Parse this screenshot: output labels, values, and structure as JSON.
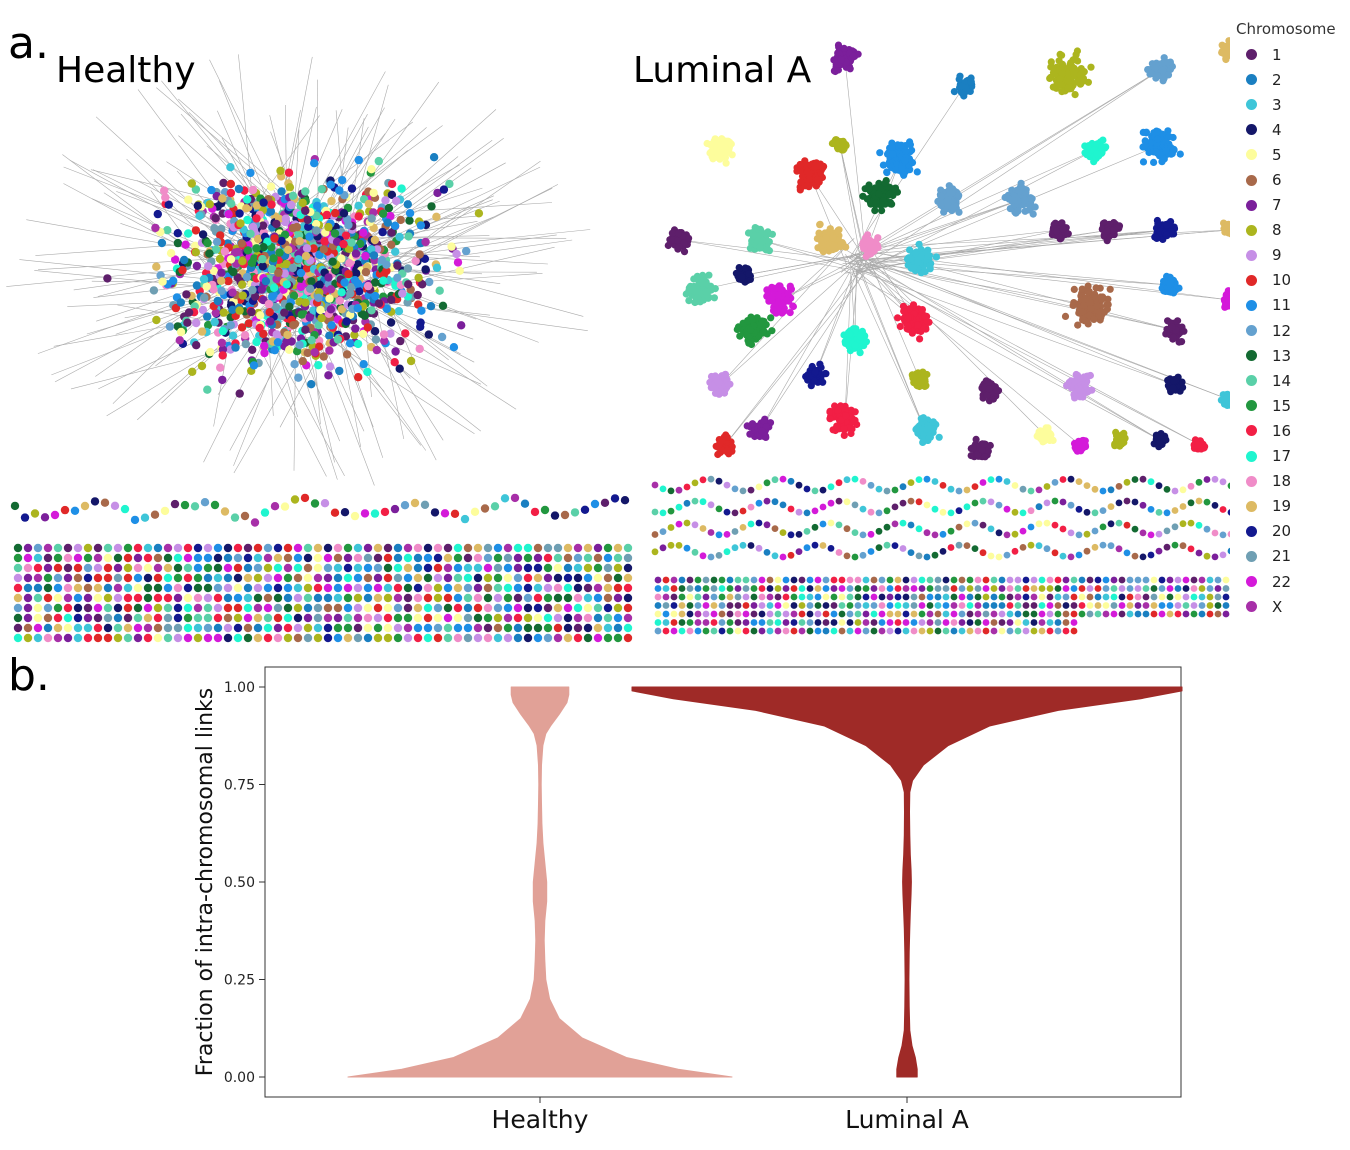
{
  "panel_a": {
    "letter": "a.",
    "left_network_title": "Healthy",
    "right_network_title": "Luminal A",
    "legend": {
      "title": "Chromosome",
      "items": [
        {
          "label": "1",
          "color": "#5e1f6b"
        },
        {
          "label": "2",
          "color": "#1a7fc1"
        },
        {
          "label": "3",
          "color": "#3ec5d8"
        },
        {
          "label": "4",
          "color": "#141769"
        },
        {
          "label": "5",
          "color": "#fdfd9c"
        },
        {
          "label": "6",
          "color": "#a8694a"
        },
        {
          "label": "7",
          "color": "#7b1f9b"
        },
        {
          "label": "8",
          "color": "#acb51e"
        },
        {
          "label": "9",
          "color": "#c68fe6"
        },
        {
          "label": "10",
          "color": "#e02828"
        },
        {
          "label": "11",
          "color": "#1e8fe6"
        },
        {
          "label": "12",
          "color": "#64a1cf"
        },
        {
          "label": "13",
          "color": "#136a32"
        },
        {
          "label": "14",
          "color": "#5ad0a8"
        },
        {
          "label": "15",
          "color": "#22973f"
        },
        {
          "label": "16",
          "color": "#f21f45"
        },
        {
          "label": "17",
          "color": "#1ff5cf"
        },
        {
          "label": "18",
          "color": "#f08cc8"
        },
        {
          "label": "19",
          "color": "#ddba63"
        },
        {
          "label": "20",
          "color": "#13198f"
        },
        {
          "label": "21",
          "color": "#6f9fb3"
        },
        {
          "label": "22",
          "color": "#d41ad9"
        },
        {
          "label": "X",
          "color": "#a72fa8"
        }
      ]
    }
  },
  "panel_b": {
    "letter": "b.",
    "chart_data": {
      "type": "violin",
      "xlabel": "",
      "ylabel": "Fraction of intra-chromosomal links",
      "ylim": [
        0,
        1
      ],
      "yticks": [
        "0.00",
        "0.25",
        "0.50",
        "0.75",
        "1.00"
      ],
      "grid": false,
      "categories": [
        "Healthy",
        "Luminal A"
      ],
      "series": [
        {
          "category": "Healthy",
          "color": "#e1a197",
          "density_y": [
            0.0,
            0.02,
            0.05,
            0.1,
            0.15,
            0.2,
            0.25,
            0.3,
            0.35,
            0.4,
            0.45,
            0.5,
            0.55,
            0.6,
            0.65,
            0.7,
            0.75,
            0.8,
            0.85,
            0.88,
            0.9,
            0.93,
            0.96,
            0.98,
            1.0
          ],
          "half_width": [
            1.0,
            0.72,
            0.45,
            0.22,
            0.1,
            0.05,
            0.03,
            0.025,
            0.022,
            0.025,
            0.035,
            0.035,
            0.025,
            0.015,
            0.01,
            0.008,
            0.006,
            0.008,
            0.015,
            0.03,
            0.055,
            0.1,
            0.14,
            0.15,
            0.15
          ]
        },
        {
          "category": "Luminal A",
          "color": "#9f2a27",
          "density_y": [
            0.0,
            0.02,
            0.05,
            0.08,
            0.12,
            0.18,
            0.25,
            0.32,
            0.38,
            0.42,
            0.47,
            0.5,
            0.53,
            0.57,
            0.62,
            0.68,
            0.73,
            0.76,
            0.8,
            0.85,
            0.9,
            0.94,
            0.97,
            0.99,
            1.0
          ],
          "half_width": [
            0.037,
            0.037,
            0.03,
            0.018,
            0.01,
            0.008,
            0.007,
            0.008,
            0.01,
            0.012,
            0.015,
            0.016,
            0.015,
            0.012,
            0.01,
            0.009,
            0.01,
            0.02,
            0.06,
            0.15,
            0.3,
            0.55,
            0.85,
            1.0,
            1.0
          ]
        }
      ]
    }
  }
}
